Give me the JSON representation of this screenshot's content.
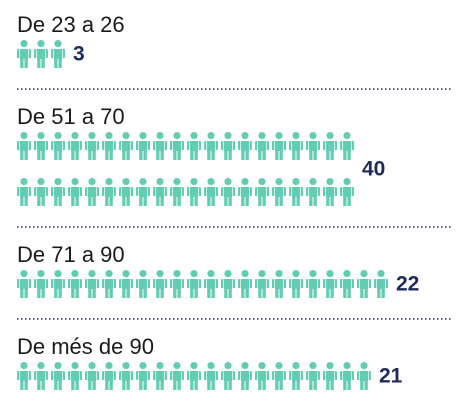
{
  "chart_data": {
    "type": "pictogram",
    "categories": [
      "De 23 a 26",
      "De 51 a 70",
      "De 71 a 90",
      "De més de 90"
    ],
    "values": [
      3,
      40,
      22,
      21
    ],
    "color": "#62cdb2"
  }
}
